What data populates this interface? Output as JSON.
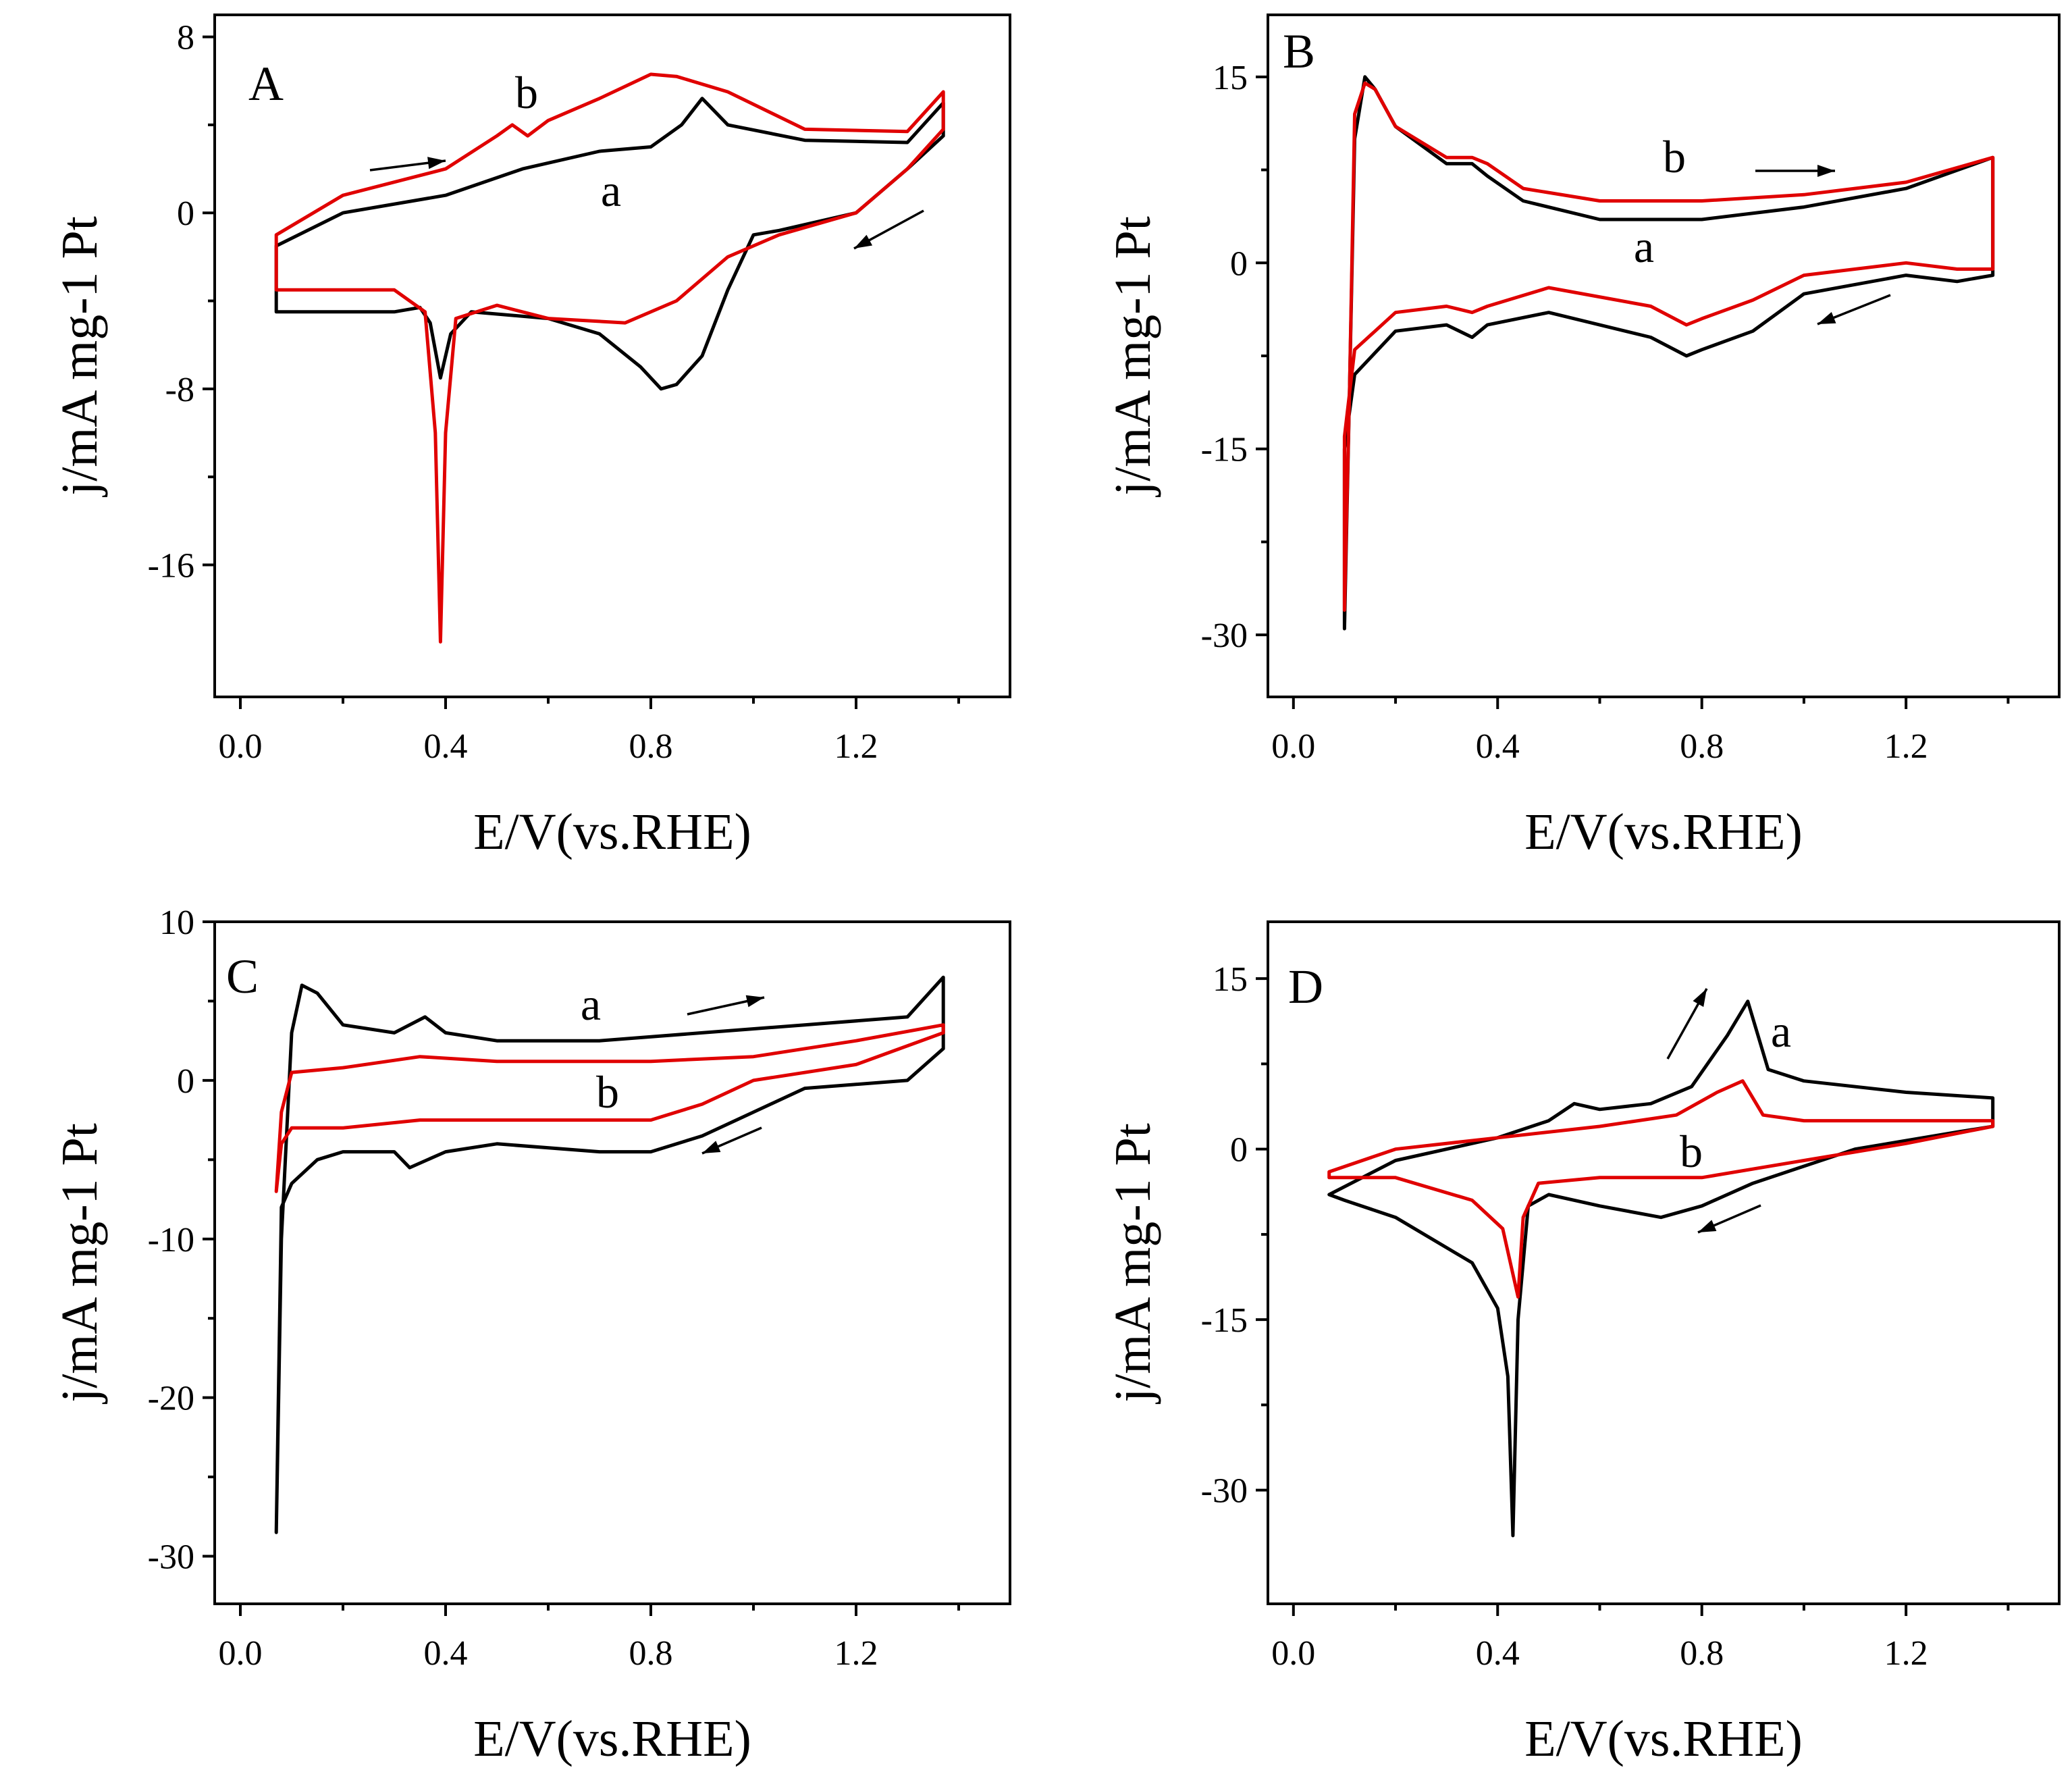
{
  "chart_data": [
    {
      "panel": "A",
      "type": "line",
      "xlabel": "E/V(vs.RHE)",
      "ylabel": "j/mA mg-1 Pt",
      "xlim": [
        -0.05,
        1.5
      ],
      "ylim": [
        -22,
        9
      ],
      "xticks": [
        0.0,
        0.4,
        0.8,
        1.2
      ],
      "xtick_labels": [
        "0.0",
        "0.4",
        "0.8",
        "1.2"
      ],
      "yticks": [
        8,
        0,
        -8,
        -16
      ],
      "ytick_labels": [
        "8",
        "0",
        "-8",
        "-16"
      ],
      "series": [
        {
          "name": "a",
          "color": "#000000",
          "x": [
            0.07,
            0.2,
            0.4,
            0.55,
            0.7,
            0.8,
            0.86,
            0.9,
            0.95,
            1.1,
            1.3,
            1.37,
            1.37,
            1.3,
            1.2,
            1.05,
            1.0,
            0.95,
            0.9,
            0.85,
            0.82,
            0.78,
            0.7,
            0.6,
            0.45,
            0.41,
            0.39,
            0.37,
            0.35,
            0.3,
            0.2,
            0.07,
            0.07
          ],
          "y": [
            -1.5,
            0.0,
            0.8,
            2.0,
            2.8,
            3.0,
            4.0,
            5.2,
            4.0,
            3.3,
            3.2,
            5.0,
            3.5,
            2.0,
            0.0,
            -0.8,
            -1.0,
            -3.5,
            -6.5,
            -7.8,
            -8.0,
            -7.0,
            -5.5,
            -4.8,
            -4.5,
            -5.5,
            -7.5,
            -5.0,
            -4.3,
            -4.5,
            -4.5,
            -4.5,
            -1.5
          ]
        },
        {
          "name": "b",
          "color": "#e00000",
          "x": [
            0.07,
            0.2,
            0.4,
            0.5,
            0.53,
            0.56,
            0.6,
            0.7,
            0.8,
            0.85,
            0.95,
            1.1,
            1.3,
            1.37,
            1.37,
            1.3,
            1.2,
            1.05,
            0.95,
            0.85,
            0.75,
            0.6,
            0.5,
            0.42,
            0.4,
            0.39,
            0.38,
            0.36,
            0.3,
            0.2,
            0.1,
            0.07,
            0.07
          ],
          "y": [
            -1.0,
            0.8,
            2.0,
            3.5,
            4.0,
            3.5,
            4.2,
            5.2,
            6.3,
            6.2,
            5.5,
            3.8,
            3.7,
            5.5,
            3.8,
            2.0,
            0.0,
            -1.0,
            -2.0,
            -4.0,
            -5.0,
            -4.8,
            -4.2,
            -4.8,
            -10.0,
            -19.5,
            -10.0,
            -4.5,
            -3.5,
            -3.5,
            -3.5,
            -3.5,
            -1.0
          ]
        }
      ]
    },
    {
      "panel": "B",
      "type": "line",
      "xlabel": "E/V(vs.RHE)",
      "ylabel": "j/mA mg-1 Pt",
      "xlim": [
        -0.05,
        1.5
      ],
      "ylim": [
        -35,
        20
      ],
      "xticks": [
        0.0,
        0.4,
        0.8,
        1.2
      ],
      "xtick_labels": [
        "0.0",
        "0.4",
        "0.8",
        "1.2"
      ],
      "yticks": [
        15,
        0,
        -15,
        -30
      ],
      "ytick_labels": [
        "15",
        "0",
        "-15",
        "-30"
      ],
      "series": [
        {
          "name": "a",
          "color": "#000000",
          "x": [
            0.1,
            0.11,
            0.12,
            0.14,
            0.16,
            0.2,
            0.3,
            0.35,
            0.38,
            0.45,
            0.6,
            0.8,
            1.0,
            1.2,
            1.37,
            1.37,
            1.3,
            1.2,
            1.0,
            0.9,
            0.8,
            0.77,
            0.7,
            0.5,
            0.38,
            0.35,
            0.3,
            0.2,
            0.12,
            0.1,
            0.1
          ],
          "y": [
            -29.5,
            -10.0,
            10.0,
            15.0,
            14.0,
            11.0,
            8.0,
            8.0,
            7.0,
            5.0,
            3.5,
            3.5,
            4.5,
            6.0,
            8.5,
            -1.0,
            -1.5,
            -1.0,
            -2.5,
            -5.5,
            -7.0,
            -7.5,
            -6.0,
            -4.0,
            -5.0,
            -6.0,
            -5.0,
            -5.5,
            -9.0,
            -15.0,
            -29.5
          ]
        },
        {
          "name": "b",
          "color": "#e00000",
          "x": [
            0.1,
            0.11,
            0.12,
            0.14,
            0.16,
            0.2,
            0.3,
            0.35,
            0.38,
            0.45,
            0.6,
            0.8,
            1.0,
            1.2,
            1.37,
            1.37,
            1.3,
            1.2,
            1.0,
            0.9,
            0.8,
            0.77,
            0.7,
            0.5,
            0.38,
            0.35,
            0.3,
            0.2,
            0.12,
            0.1,
            0.1
          ],
          "y": [
            -28.0,
            -10.0,
            12.0,
            14.5,
            14.0,
            11.0,
            8.5,
            8.5,
            8.0,
            6.0,
            5.0,
            5.0,
            5.5,
            6.5,
            8.5,
            -0.5,
            -0.5,
            0.0,
            -1.0,
            -3.0,
            -4.5,
            -5.0,
            -3.5,
            -2.0,
            -3.5,
            -4.0,
            -3.5,
            -4.0,
            -7.0,
            -14.0,
            -28.0
          ]
        }
      ]
    },
    {
      "panel": "C",
      "type": "line",
      "xlabel": "E/V(vs.RHE)",
      "ylabel": "j/mA mg-1 Pt",
      "xlim": [
        -0.05,
        1.5
      ],
      "ylim": [
        -33,
        10
      ],
      "xticks": [
        0.0,
        0.4,
        0.8,
        1.2
      ],
      "xtick_labels": [
        "0.0",
        "0.4",
        "0.8",
        "1.2"
      ],
      "yticks": [
        10,
        0,
        -10,
        -20,
        -30
      ],
      "ytick_labels": [
        "10",
        "0",
        "-10",
        "-20",
        "-30"
      ],
      "series": [
        {
          "name": "a",
          "color": "#000000",
          "x": [
            0.07,
            0.08,
            0.1,
            0.12,
            0.15,
            0.2,
            0.3,
            0.36,
            0.4,
            0.5,
            0.7,
            0.9,
            1.1,
            1.3,
            1.37,
            1.37,
            1.3,
            1.1,
            1.0,
            0.9,
            0.8,
            0.7,
            0.5,
            0.4,
            0.33,
            0.3,
            0.2,
            0.15,
            0.1,
            0.08,
            0.07
          ],
          "y": [
            -28.5,
            -10.0,
            3.0,
            6.0,
            5.5,
            3.5,
            3.0,
            4.0,
            3.0,
            2.5,
            2.5,
            3.0,
            3.5,
            4.0,
            6.5,
            2.0,
            0.0,
            -0.5,
            -2.0,
            -3.5,
            -4.5,
            -4.5,
            -4.0,
            -4.5,
            -5.5,
            -4.5,
            -4.5,
            -5.0,
            -6.5,
            -8.0,
            -28.5
          ]
        },
        {
          "name": "b",
          "color": "#e00000",
          "x": [
            0.07,
            0.08,
            0.1,
            0.2,
            0.35,
            0.5,
            0.8,
            1.0,
            1.2,
            1.37,
            1.37,
            1.2,
            1.0,
            0.9,
            0.8,
            0.7,
            0.5,
            0.35,
            0.2,
            0.1,
            0.08,
            0.07
          ],
          "y": [
            -7.0,
            -2.0,
            0.5,
            0.8,
            1.5,
            1.2,
            1.2,
            1.5,
            2.5,
            3.5,
            3.0,
            1.0,
            0.0,
            -1.5,
            -2.5,
            -2.5,
            -2.5,
            -2.5,
            -3.0,
            -3.0,
            -4.0,
            -7.0
          ]
        }
      ]
    },
    {
      "panel": "D",
      "type": "line",
      "xlabel": "E/V(vs.RHE)",
      "ylabel": "j/mA mg-1 Pt",
      "xlim": [
        -0.05,
        1.5
      ],
      "ylim": [
        -40,
        20
      ],
      "xticks": [
        0.0,
        0.4,
        0.8,
        1.2
      ],
      "xtick_labels": [
        "0.0",
        "0.4",
        "0.8",
        "1.2"
      ],
      "yticks": [
        15,
        0,
        -15,
        -30
      ],
      "ytick_labels": [
        "15",
        "0",
        "-15",
        "-30"
      ],
      "series": [
        {
          "name": "a",
          "color": "#000000",
          "x": [
            0.07,
            0.2,
            0.4,
            0.5,
            0.55,
            0.6,
            0.7,
            0.78,
            0.85,
            0.89,
            0.93,
            1.0,
            1.2,
            1.37,
            1.37,
            1.3,
            1.1,
            0.9,
            0.8,
            0.72,
            0.6,
            0.5,
            0.46,
            0.44,
            0.43,
            0.42,
            0.4,
            0.35,
            0.2,
            0.1,
            0.07,
            0.07
          ],
          "y": [
            -4.0,
            -1.0,
            1.0,
            2.5,
            4.0,
            3.5,
            4.0,
            5.5,
            10.0,
            13.0,
            7.0,
            6.0,
            5.0,
            4.5,
            2.0,
            1.5,
            0.0,
            -3.0,
            -5.0,
            -6.0,
            -5.0,
            -4.0,
            -5.0,
            -15.0,
            -34.0,
            -20.0,
            -14.0,
            -10.0,
            -6.0,
            -4.5,
            -4.0,
            -4.0
          ]
        },
        {
          "name": "b",
          "color": "#e00000",
          "x": [
            0.07,
            0.2,
            0.4,
            0.6,
            0.75,
            0.83,
            0.88,
            0.92,
            1.0,
            1.2,
            1.37,
            1.37,
            1.2,
            1.0,
            0.8,
            0.6,
            0.48,
            0.45,
            0.44,
            0.43,
            0.41,
            0.35,
            0.2,
            0.07,
            0.07
          ],
          "y": [
            -2.0,
            0.0,
            1.0,
            2.0,
            3.0,
            5.0,
            6.0,
            3.0,
            2.5,
            2.5,
            2.5,
            2.0,
            0.5,
            -1.0,
            -2.5,
            -2.5,
            -3.0,
            -6.0,
            -13.0,
            -11.0,
            -7.0,
            -4.5,
            -2.5,
            -2.5,
            -2.0
          ]
        }
      ]
    }
  ]
}
